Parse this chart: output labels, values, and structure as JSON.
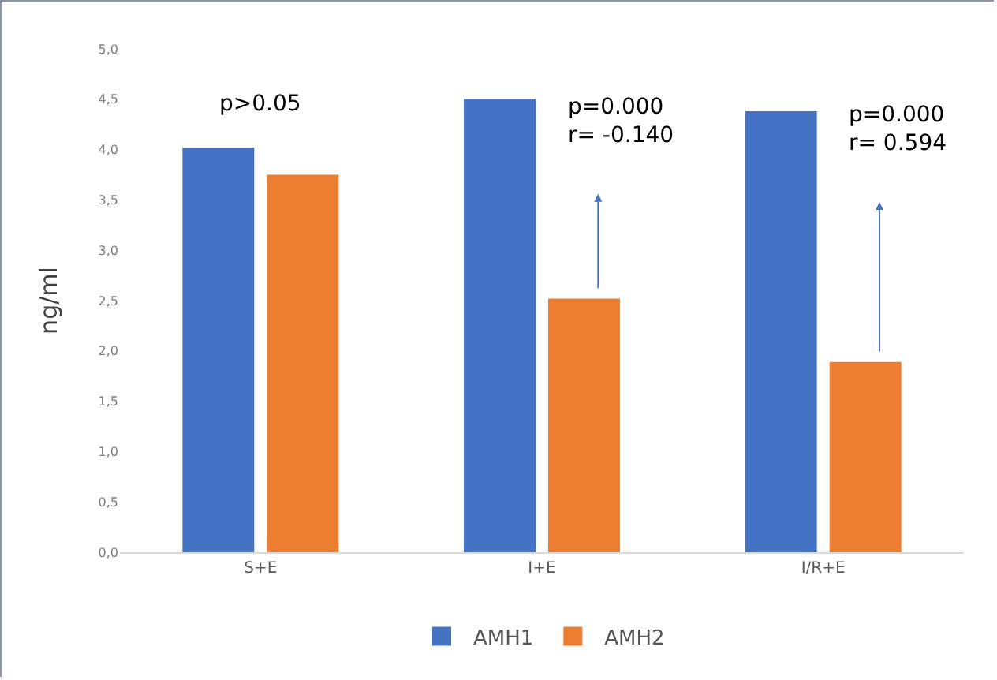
{
  "chart_data": {
    "type": "bar",
    "ylabel": "ng/ml",
    "categories": [
      "S+E",
      "I+E",
      "I/R+E"
    ],
    "series": [
      {
        "name": "AMH1",
        "color": "#4472c4",
        "values": [
          4.02,
          4.5,
          4.38
        ]
      },
      {
        "name": "AMH2",
        "color": "#ed7d31",
        "values": [
          3.75,
          2.52,
          1.89
        ]
      }
    ],
    "ylim": [
      0,
      5
    ],
    "yticks": [
      {
        "value": 0,
        "label": "0,0"
      },
      {
        "value": 0.5,
        "label": "0,5"
      },
      {
        "value": 1,
        "label": "1,0"
      },
      {
        "value": 1.5,
        "label": "1,5"
      },
      {
        "value": 2,
        "label": "2,0"
      },
      {
        "value": 2.5,
        "label": "2,5"
      },
      {
        "value": 3,
        "label": "3,0"
      },
      {
        "value": 3.5,
        "label": "3,5"
      },
      {
        "value": 4,
        "label": "4,0"
      },
      {
        "value": 4.5,
        "label": "4,5"
      },
      {
        "value": 5,
        "label": "5,0"
      }
    ],
    "grid": false,
    "legend": "bottom",
    "annotations": [
      "p>0.05",
      {
        "text": "p=0.000\nr= -0.140",
        "x": "I+E",
        "y": 4.28
      },
      {
        "text": "p=0.000\nr= 0.594",
        "x": "I/R+E",
        "y": 4.2
      }
    ]
  }
}
